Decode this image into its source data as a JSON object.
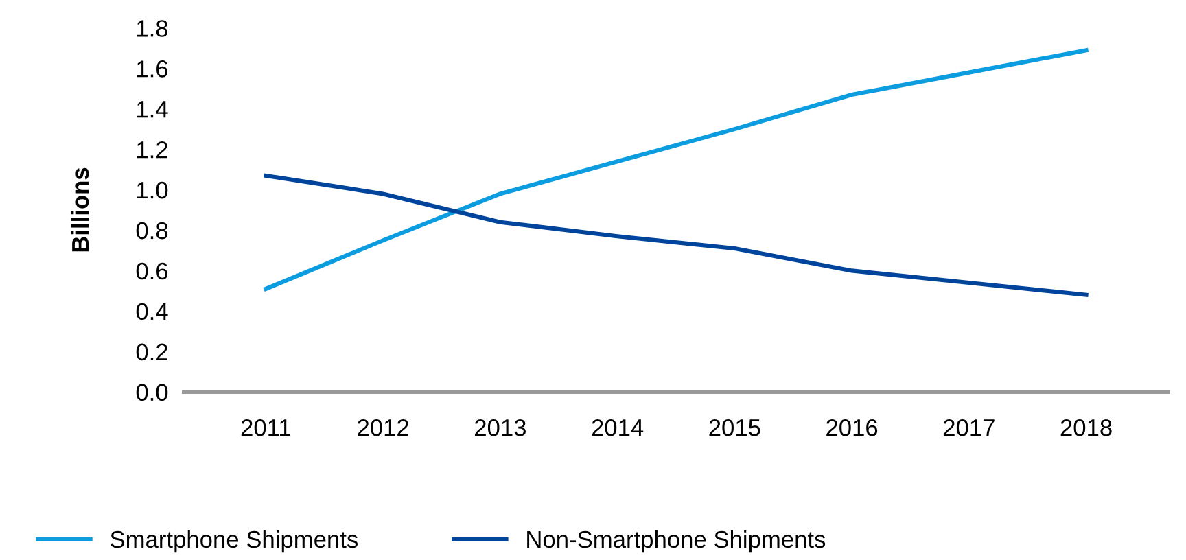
{
  "chart_data": {
    "type": "line",
    "ylabel": "Billions",
    "categories": [
      "2011",
      "2012",
      "2013",
      "2014",
      "2015",
      "2016",
      "2017",
      "2018"
    ],
    "series": [
      {
        "name": "Smartphone Shipments",
        "color": "#0b9de0",
        "values": [
          0.51,
          0.75,
          0.98,
          1.14,
          1.3,
          1.47,
          1.58,
          1.69
        ]
      },
      {
        "name": "Non-Smartphone Shipments",
        "color": "#00449b",
        "values": [
          1.07,
          0.98,
          0.84,
          0.77,
          0.71,
          0.6,
          0.54,
          0.48
        ]
      }
    ],
    "ylim": [
      0,
      1.8
    ],
    "yticks": [
      {
        "value": 0,
        "label": "0.0"
      },
      0.2,
      0.4,
      0.6,
      0.8,
      {
        "value": 1,
        "label": "1.0"
      },
      1.2,
      1.4,
      1.6,
      1.8
    ],
    "grid": false,
    "legend": "bottom left",
    "marker": "none",
    "line_style": "solid"
  }
}
